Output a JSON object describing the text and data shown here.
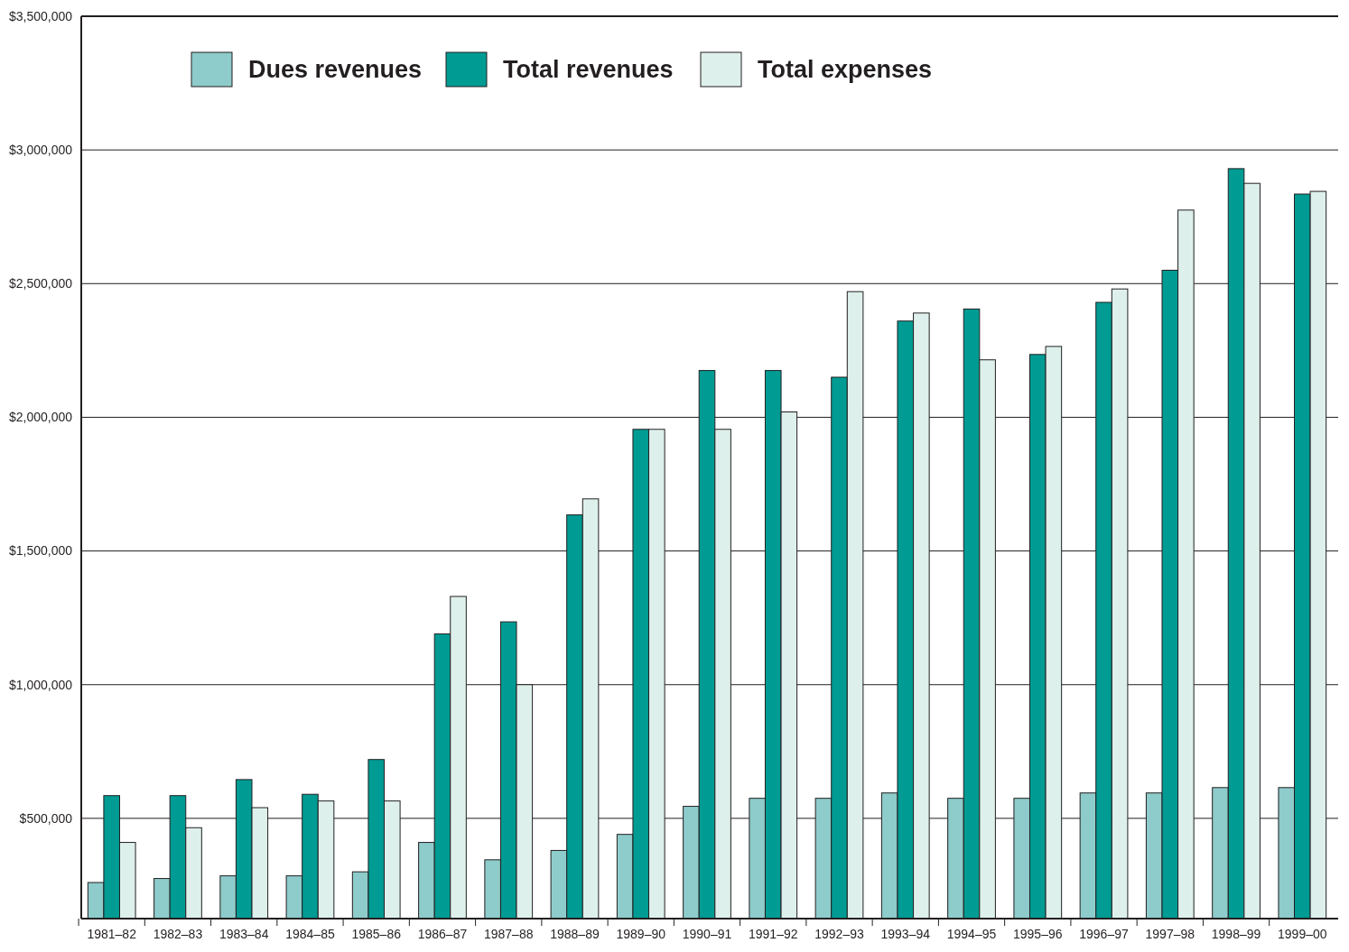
{
  "chart_data": {
    "type": "bar",
    "categories": [
      "1981–82",
      "1982–83",
      "1983–84",
      "1984–85",
      "1985–86",
      "1986–87",
      "1987–88",
      "1988–89",
      "1989–90",
      "1990–91",
      "1991–92",
      "1992–93",
      "1993–94",
      "1994–95",
      "1995–96",
      "1996–97",
      "1997–98",
      "1998–99",
      "1999–00"
    ],
    "series": [
      {
        "name": "Dues revenues",
        "color": "#8ecbcb",
        "values": [
          260000,
          275000,
          285000,
          285000,
          300000,
          410000,
          345000,
          380000,
          440000,
          545000,
          575000,
          575000,
          595000,
          575000,
          575000,
          595000,
          595000,
          615000,
          615000
        ]
      },
      {
        "name": "Total revenues",
        "color": "#009b93",
        "values": [
          585000,
          585000,
          645000,
          590000,
          720000,
          1190000,
          1235000,
          1635000,
          1955000,
          2175000,
          2175000,
          2150000,
          2360000,
          2405000,
          2235000,
          2430000,
          2550000,
          2930000,
          2835000
        ]
      },
      {
        "name": "Total expenses",
        "color": "#ddf0ec",
        "values": [
          410000,
          465000,
          540000,
          565000,
          565000,
          1330000,
          1000000,
          1695000,
          1955000,
          1955000,
          2020000,
          2470000,
          2390000,
          2215000,
          2265000,
          2480000,
          2775000,
          2875000,
          2845000
        ]
      }
    ],
    "ylim": [
      125000,
      3500000
    ],
    "yticks": [
      {
        "value": 500000,
        "label": "$500,000"
      },
      {
        "value": 1000000,
        "label": "$1,000,000"
      },
      {
        "value": 1500000,
        "label": "$1,500,000"
      },
      {
        "value": 2000000,
        "label": "$2,000,000"
      },
      {
        "value": 2500000,
        "label": "$2,500,000"
      },
      {
        "value": 3000000,
        "label": "$3,000,000"
      },
      {
        "value": 3500000,
        "label": "$3,500,000"
      }
    ],
    "grid": "y",
    "legend": "top left"
  }
}
